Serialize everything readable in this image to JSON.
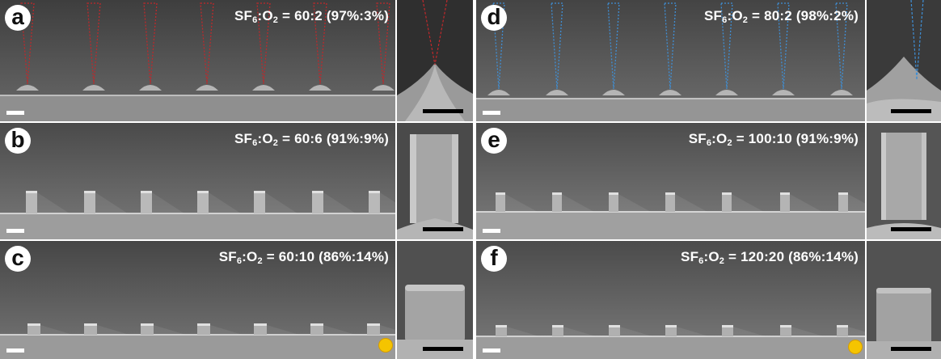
{
  "panels": [
    {
      "letter": "a",
      "ratio_prefix": "SF",
      "ratio_sub1": "6",
      "ratio_mid": ":O",
      "ratio_sub2": "2",
      "ratio_value": " = 60:2 (97%:3%)",
      "overlay_color": "#c0282b"
    },
    {
      "letter": "b",
      "ratio_prefix": "SF",
      "ratio_sub1": "6",
      "ratio_mid": ":O",
      "ratio_sub2": "2",
      "ratio_value": " = 60:6 (91%:9%)"
    },
    {
      "letter": "c",
      "ratio_prefix": "SF",
      "ratio_sub1": "6",
      "ratio_mid": ":O",
      "ratio_sub2": "2",
      "ratio_value": " = 60:10 (86%:14%)"
    },
    {
      "letter": "d",
      "ratio_prefix": "SF",
      "ratio_sub1": "6",
      "ratio_mid": ":O",
      "ratio_sub2": "2",
      "ratio_value": " = 80:2 (98%:2%)",
      "overlay_color": "#3f8fd6"
    },
    {
      "letter": "e",
      "ratio_prefix": "SF",
      "ratio_sub1": "6",
      "ratio_mid": ":O",
      "ratio_sub2": "2",
      "ratio_value": " = 100:10 (91%:9%)"
    },
    {
      "letter": "f",
      "ratio_prefix": "SF",
      "ratio_sub1": "6",
      "ratio_mid": ":O",
      "ratio_sub2": "2",
      "ratio_value": " = 120:20 (86%:14%)"
    }
  ],
  "logo_color": "#f5c400"
}
